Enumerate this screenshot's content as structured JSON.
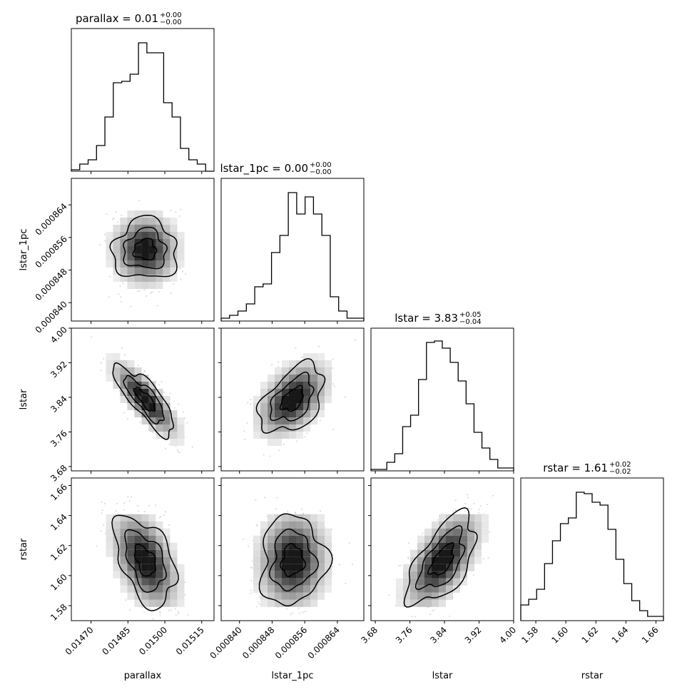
{
  "chart_data": {
    "type": "corner",
    "parameters": [
      {
        "name": "parallax",
        "title_prefix": "parallax = 0.01",
        "err_plus": "+0.00",
        "err_minus": "−0.00",
        "axis_label": "parallax",
        "range": [
          0.01462,
          0.0152
        ],
        "ticks": [
          0.0147,
          0.01485,
          0.015,
          0.01515
        ],
        "tick_labels": [
          "0.01470",
          "0.01485",
          "0.01500",
          "0.01515"
        ],
        "hist_heights": [
          0.01,
          0.05,
          0.08,
          0.18,
          0.38,
          0.62,
          0.63,
          0.68,
          0.9,
          0.83,
          0.83,
          0.48,
          0.38,
          0.16,
          0.08,
          0.05,
          0.0
        ],
        "mean": 0.01492,
        "std": 7e-05
      },
      {
        "name": "lstar_1pc",
        "title_prefix": "lstar_1pc = 0.00",
        "err_plus": "+0.00",
        "err_minus": "−0.00",
        "axis_label": "lstar_1pc",
        "range": [
          0.0008355,
          0.0008705
        ],
        "ticks": [
          0.00084,
          0.000848,
          0.000856,
          0.000864
        ],
        "tick_labels": [
          "0.000840",
          "0.000848",
          "0.000856",
          "0.000864"
        ],
        "hist_heights": [
          0.02,
          0.04,
          0.07,
          0.12,
          0.24,
          0.26,
          0.48,
          0.6,
          0.9,
          0.75,
          0.87,
          0.75,
          0.6,
          0.17,
          0.07,
          0.02,
          0.02
        ],
        "mean": 0.000853,
        "std": 4.5e-06
      },
      {
        "name": "lstar",
        "title_prefix": "lstar = 3.83",
        "err_plus": "+0.05",
        "err_minus": "−0.04",
        "axis_label": "lstar",
        "range": [
          3.67,
          4.0
        ],
        "ticks": [
          3.68,
          3.76,
          3.84,
          3.92,
          4.0
        ],
        "tick_labels": [
          "3.68",
          "3.76",
          "3.84",
          "3.92",
          "4.00"
        ],
        "hist_heights": [
          0.01,
          0.01,
          0.06,
          0.12,
          0.31,
          0.39,
          0.64,
          0.9,
          0.91,
          0.86,
          0.76,
          0.63,
          0.47,
          0.27,
          0.16,
          0.08,
          0.02,
          0.02
        ],
        "mean": 3.835,
        "std": 0.045
      },
      {
        "name": "rstar",
        "title_prefix": "rstar = 1.61",
        "err_plus": "+0.02",
        "err_minus": "−0.02",
        "axis_label": "rstar",
        "range": [
          1.57,
          1.665
        ],
        "ticks": [
          1.58,
          1.6,
          1.62,
          1.64,
          1.66
        ],
        "tick_labels": [
          "1.58",
          "1.60",
          "1.62",
          "1.64",
          "1.66"
        ],
        "hist_heights": [
          0.11,
          0.15,
          0.22,
          0.4,
          0.56,
          0.68,
          0.72,
          0.9,
          0.89,
          0.83,
          0.81,
          0.64,
          0.43,
          0.26,
          0.14,
          0.07,
          0.03,
          0.03
        ],
        "mean": 1.61,
        "std": 0.017
      }
    ],
    "correlations": {
      "1-0": 0.0,
      "2-0": -0.8,
      "2-1": 0.45,
      "3-0": -0.45,
      "3-1": 0.05,
      "3-2": 0.6
    },
    "grid": false,
    "contour_color": "#000000",
    "density_color": "#000000"
  }
}
